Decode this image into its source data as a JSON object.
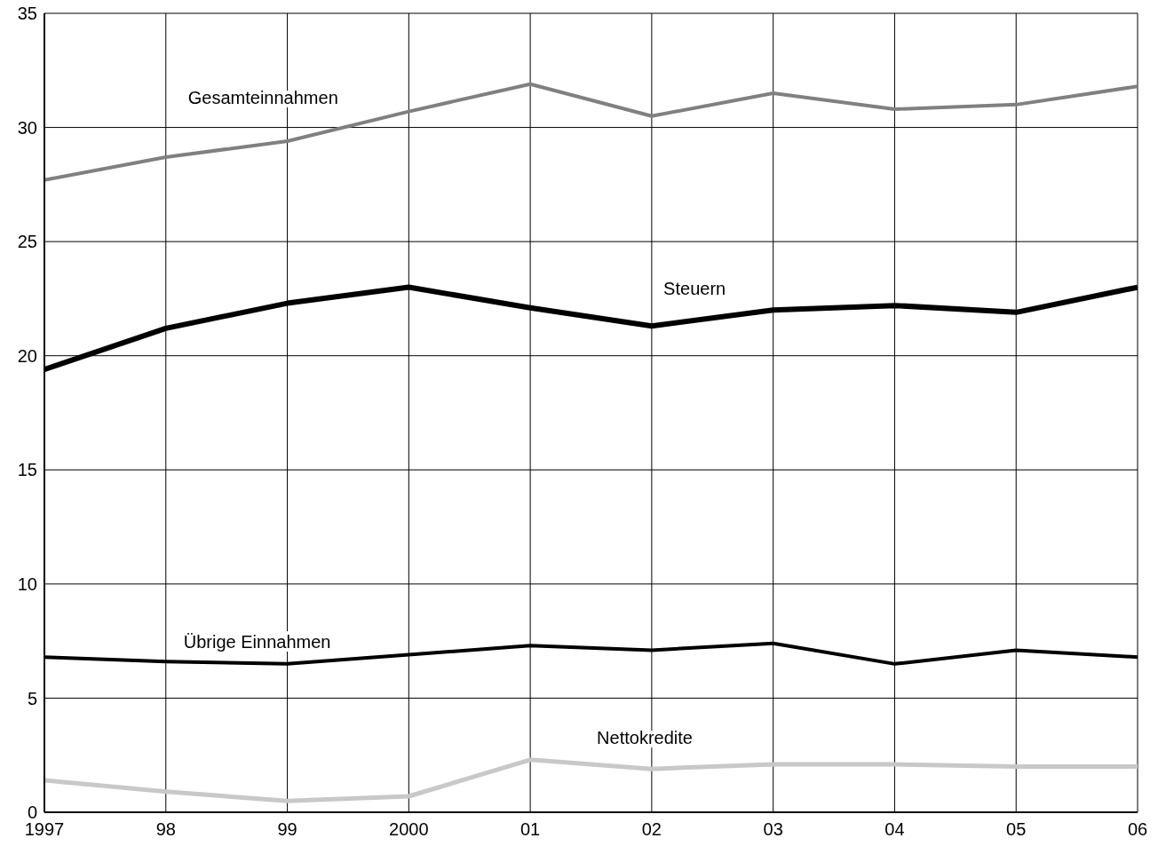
{
  "chart_data": {
    "type": "line",
    "x": [
      1997,
      1998,
      1999,
      2000,
      2001,
      2002,
      2003,
      2004,
      2005,
      2006
    ],
    "xlim": [
      1997,
      2006
    ],
    "xticks": [
      1997,
      {
        "value": 1998,
        "label": "98"
      },
      {
        "value": 1999,
        "label": "99"
      },
      2000,
      {
        "value": 2001,
        "label": "01"
      },
      {
        "value": 2002,
        "label": "02"
      },
      {
        "value": 2003,
        "label": "03"
      },
      {
        "value": 2004,
        "label": "04"
      },
      {
        "value": 2005,
        "label": "05"
      },
      {
        "value": 2006,
        "label": "06"
      }
    ],
    "ylim": [
      0,
      35
    ],
    "yticks": [
      0,
      5,
      10,
      15,
      20,
      25,
      30,
      35
    ],
    "grid": true,
    "legend": false,
    "marker": "none",
    "line_style": "solid",
    "series": [
      {
        "name": "Gesamteinnahmen",
        "color": "#808080",
        "values": [
          27.7,
          28.7,
          29.4,
          30.7,
          31.9,
          30.5,
          31.5,
          30.8,
          31.0,
          31.8
        ]
      },
      {
        "name": "Steuern",
        "color": "#000000",
        "values": [
          19.4,
          21.2,
          22.3,
          23.0,
          22.1,
          21.3,
          22.0,
          22.2,
          21.9,
          23.0
        ]
      },
      {
        "name": "Übrige Einnahmen",
        "color": "#000000",
        "values": [
          6.8,
          6.6,
          6.5,
          6.9,
          7.3,
          7.1,
          7.4,
          6.5,
          7.1,
          6.8
        ]
      },
      {
        "name": "Nettokredite",
        "color": "#c8c8c8",
        "values": [
          1.4,
          0.9,
          0.5,
          0.7,
          2.3,
          1.9,
          2.1,
          2.1,
          2.0,
          2.0
        ]
      }
    ]
  }
}
